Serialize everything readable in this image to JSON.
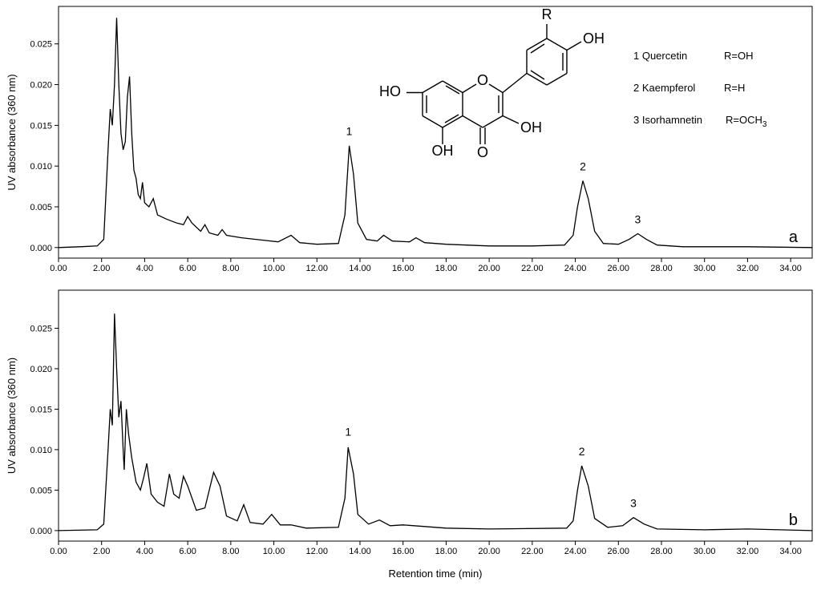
{
  "chart_data": [
    {
      "type": "line",
      "y_label": "UV absorbance (360 nm)",
      "panel_label": "a",
      "xlim": [
        0,
        35
      ],
      "ylim": [
        -0.0013,
        0.0296
      ],
      "xticks": [
        {
          "value": 0,
          "label": "0.00"
        },
        {
          "value": 2,
          "label": "2.00"
        },
        {
          "value": 4,
          "label": "4.00"
        },
        {
          "value": 6,
          "label": "6.00"
        },
        {
          "value": 8,
          "label": "8.00"
        },
        {
          "value": 10,
          "label": "10.00"
        },
        {
          "value": 12,
          "label": "12.00"
        },
        {
          "value": 14,
          "label": "14.00"
        },
        {
          "value": 16,
          "label": "16.00"
        },
        {
          "value": 18,
          "label": "18.00"
        },
        {
          "value": 20,
          "label": "20.00"
        },
        {
          "value": 22,
          "label": "22.00"
        },
        {
          "value": 24,
          "label": "24.00"
        },
        {
          "value": 26,
          "label": "26.00"
        },
        {
          "value": 28,
          "label": "28.00"
        },
        {
          "value": 30,
          "label": "30.00"
        },
        {
          "value": 32,
          "label": "32.00"
        },
        {
          "value": 34,
          "label": "34.00"
        }
      ],
      "yticks": [
        {
          "value": 0,
          "label": "0.000"
        },
        {
          "value": 0.005,
          "label": "0.005"
        },
        {
          "value": 0.01,
          "label": "0.010"
        },
        {
          "value": 0.015,
          "label": "0.015"
        },
        {
          "value": 0.02,
          "label": "0.020"
        },
        {
          "value": 0.025,
          "label": "0.025"
        }
      ],
      "annotations": [
        {
          "text": "1",
          "x": 13.5,
          "y": 0.0138
        },
        {
          "text": "2",
          "x": 24.35,
          "y": 0.0095
        },
        {
          "text": "3",
          "x": 26.9,
          "y": 0.003
        }
      ],
      "series": [
        {
          "color": "#000000",
          "x": [
            0,
            1,
            1.8,
            2.1,
            2.3,
            2.4,
            2.5,
            2.6,
            2.7,
            2.8,
            2.9,
            3.0,
            3.1,
            3.2,
            3.3,
            3.4,
            3.5,
            3.6,
            3.7,
            3.8,
            3.9,
            4.0,
            4.2,
            4.4,
            4.6,
            5.0,
            5.5,
            5.8,
            6.0,
            6.2,
            6.6,
            6.8,
            7.0,
            7.4,
            7.6,
            7.8,
            8.5,
            9.5,
            10.2,
            10.8,
            11.2,
            12,
            13,
            13.3,
            13.5,
            13.7,
            13.9,
            14.3,
            14.8,
            15.1,
            15.5,
            16.3,
            16.6,
            17,
            18,
            20,
            22,
            23.5,
            23.9,
            24.1,
            24.35,
            24.6,
            24.9,
            25.3,
            26,
            26.5,
            26.9,
            27.3,
            27.8,
            29,
            32,
            35
          ],
          "values": [
            0,
            0.0001,
            0.0002,
            0.001,
            0.012,
            0.017,
            0.015,
            0.02,
            0.0282,
            0.02,
            0.014,
            0.012,
            0.013,
            0.0185,
            0.021,
            0.014,
            0.0095,
            0.0085,
            0.0065,
            0.006,
            0.008,
            0.0055,
            0.005,
            0.006,
            0.004,
            0.0035,
            0.003,
            0.0028,
            0.0038,
            0.003,
            0.002,
            0.0028,
            0.0018,
            0.0015,
            0.0022,
            0.0015,
            0.0012,
            0.0009,
            0.0007,
            0.0015,
            0.0006,
            0.0004,
            0.0005,
            0.004,
            0.0125,
            0.009,
            0.003,
            0.001,
            0.0008,
            0.0015,
            0.0008,
            0.0007,
            0.0012,
            0.0006,
            0.0004,
            0.0002,
            0.0002,
            0.0003,
            0.0015,
            0.005,
            0.0082,
            0.006,
            0.002,
            0.0005,
            0.0004,
            0.001,
            0.0017,
            0.001,
            0.0003,
            0.0001,
            0.0001,
            0
          ]
        }
      ]
    },
    {
      "type": "line",
      "y_label": "UV absorbance (360 nm)",
      "x_label": "Retention time (min)",
      "panel_label": "b",
      "xlim": [
        0,
        35
      ],
      "ylim": [
        -0.0013,
        0.0297
      ],
      "xticks": [
        {
          "value": 0,
          "label": "0.00"
        },
        {
          "value": 2,
          "label": "2.00"
        },
        {
          "value": 4,
          "label": "4.00"
        },
        {
          "value": 6,
          "label": "6.00"
        },
        {
          "value": 8,
          "label": "8.00"
        },
        {
          "value": 10,
          "label": "10.00"
        },
        {
          "value": 12,
          "label": "12.00"
        },
        {
          "value": 14,
          "label": "14.00"
        },
        {
          "value": 16,
          "label": "16.00"
        },
        {
          "value": 18,
          "label": "18.00"
        },
        {
          "value": 20,
          "label": "20.00"
        },
        {
          "value": 22,
          "label": "22.00"
        },
        {
          "value": 24,
          "label": "24.00"
        },
        {
          "value": 26,
          "label": "26.00"
        },
        {
          "value": 28,
          "label": "28.00"
        },
        {
          "value": 30,
          "label": "30.00"
        },
        {
          "value": 32,
          "label": "32.00"
        },
        {
          "value": 34,
          "label": "34.00"
        }
      ],
      "yticks": [
        {
          "value": 0,
          "label": "0.000"
        },
        {
          "value": 0.005,
          "label": "0.005"
        },
        {
          "value": 0.01,
          "label": "0.010"
        },
        {
          "value": 0.015,
          "label": "0.015"
        },
        {
          "value": 0.02,
          "label": "0.020"
        },
        {
          "value": 0.025,
          "label": "0.025"
        }
      ],
      "annotations": [
        {
          "text": "1",
          "x": 13.45,
          "y": 0.0117
        },
        {
          "text": "2",
          "x": 24.3,
          "y": 0.0093
        },
        {
          "text": "3",
          "x": 26.7,
          "y": 0.0029
        }
      ],
      "series": [
        {
          "color": "#000000",
          "x": [
            0,
            1.8,
            2.1,
            2.3,
            2.4,
            2.5,
            2.6,
            2.7,
            2.8,
            2.9,
            3.0,
            3.05,
            3.15,
            3.25,
            3.4,
            3.6,
            3.8,
            3.95,
            4.1,
            4.3,
            4.6,
            4.9,
            5.15,
            5.35,
            5.6,
            5.8,
            6.0,
            6.4,
            6.8,
            7.2,
            7.5,
            7.8,
            8.3,
            8.6,
            8.9,
            9.5,
            9.9,
            10.3,
            10.8,
            11.5,
            13,
            13.3,
            13.45,
            13.7,
            13.9,
            14.4,
            14.9,
            15.4,
            16,
            18,
            20,
            23.6,
            23.9,
            24.1,
            24.3,
            24.6,
            24.9,
            25.5,
            26.2,
            26.7,
            27.2,
            27.8,
            30,
            32,
            35
          ],
          "values": [
            0,
            0.0001,
            0.0008,
            0.01,
            0.015,
            0.013,
            0.0268,
            0.02,
            0.014,
            0.016,
            0.01,
            0.0075,
            0.015,
            0.012,
            0.009,
            0.006,
            0.005,
            0.0065,
            0.0083,
            0.0045,
            0.0035,
            0.003,
            0.007,
            0.0045,
            0.004,
            0.0067,
            0.0055,
            0.0025,
            0.0028,
            0.0072,
            0.0055,
            0.0018,
            0.0012,
            0.0032,
            0.001,
            0.0008,
            0.002,
            0.0007,
            0.0007,
            0.0003,
            0.0004,
            0.004,
            0.0103,
            0.007,
            0.002,
            0.0008,
            0.0013,
            0.0006,
            0.0007,
            0.0003,
            0.0002,
            0.0003,
            0.0012,
            0.005,
            0.008,
            0.0055,
            0.0015,
            0.0004,
            0.0006,
            0.0016,
            0.0008,
            0.0002,
            0.0001,
            0.0002,
            0
          ]
        }
      ]
    }
  ],
  "structure": {
    "atoms": [
      "HO",
      "O",
      "OH",
      "OH",
      "O",
      "OH",
      "R"
    ]
  },
  "compounds": [
    {
      "label": "1 Quercetin",
      "substituent": "R=OH"
    },
    {
      "label": "2 Kaempferol",
      "substituent": "R=H"
    },
    {
      "label": "3 Isorhamnetin",
      "substituent": "R=OCH",
      "subscript": "3"
    }
  ]
}
